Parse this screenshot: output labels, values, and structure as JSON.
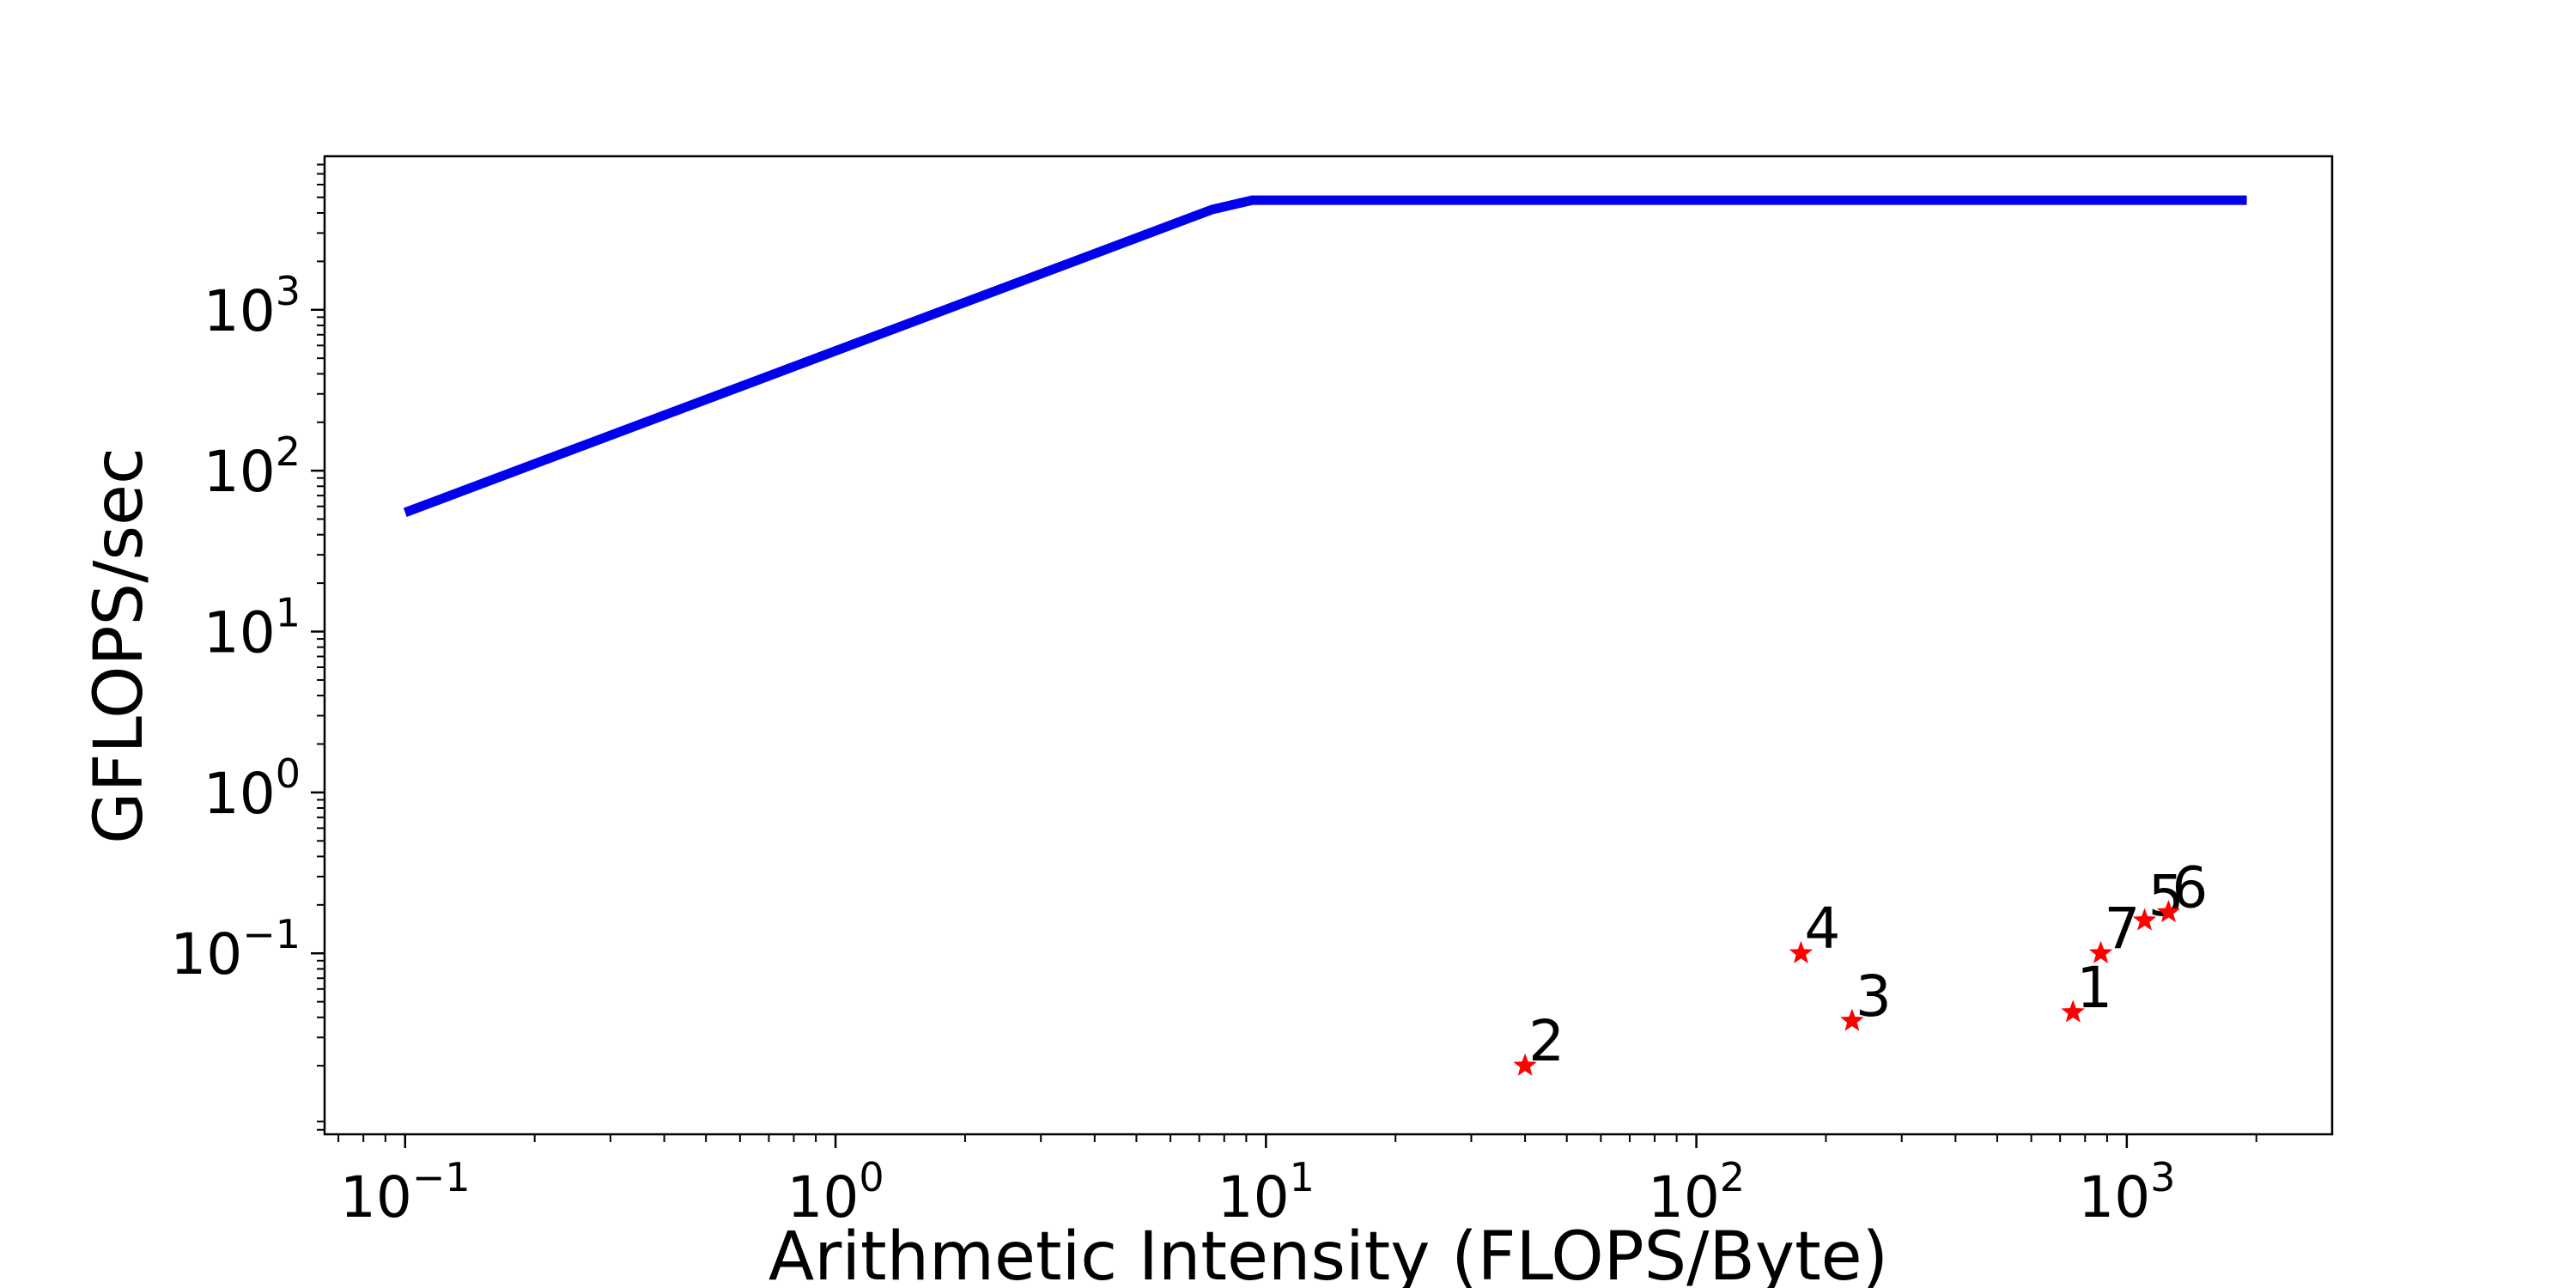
{
  "chart_data": {
    "type": "line",
    "title": "",
    "xlabel": "Arithmetic Intensity (FLOPS/Byte)",
    "ylabel": "GFLOPS/sec",
    "xscale": "log",
    "yscale": "log",
    "xlim": [
      0.065,
      3000
    ],
    "ylim": [
      0.0075,
      9000
    ],
    "grid": false,
    "legend": "none",
    "x_ticks": [
      {
        "base": "10",
        "exp": "−1",
        "value": 0.1
      },
      {
        "base": "10",
        "exp": "0",
        "value": 1
      },
      {
        "base": "10",
        "exp": "1",
        "value": 10
      },
      {
        "base": "10",
        "exp": "2",
        "value": 100
      },
      {
        "base": "10",
        "exp": "3",
        "value": 1000
      }
    ],
    "y_ticks": [
      {
        "base": "10",
        "exp": "−1",
        "value": 0.1
      },
      {
        "base": "10",
        "exp": "0",
        "value": 1
      },
      {
        "base": "10",
        "exp": "1",
        "value": 10
      },
      {
        "base": "10",
        "exp": "2",
        "value": 100
      },
      {
        "base": "10",
        "exp": "3",
        "value": 1000
      }
    ],
    "series": [
      {
        "kind": "line",
        "color": "#0000ee",
        "x": [
          0.1,
          7.5,
          9.3,
          1900
        ],
        "y": [
          55,
          4200,
          4800,
          4800
        ]
      },
      {
        "kind": "scatter",
        "marker": "star",
        "color": "#ff0000",
        "points": [
          {
            "label": "1",
            "x": 750,
            "y": 0.043
          },
          {
            "label": "2",
            "x": 40,
            "y": 0.02
          },
          {
            "label": "3",
            "x": 230,
            "y": 0.038
          },
          {
            "label": "4",
            "x": 175,
            "y": 0.1
          },
          {
            "label": "5",
            "x": 1100,
            "y": 0.16
          },
          {
            "label": "6",
            "x": 1250,
            "y": 0.18
          },
          {
            "label": "7",
            "x": 870,
            "y": 0.1
          }
        ]
      }
    ]
  }
}
